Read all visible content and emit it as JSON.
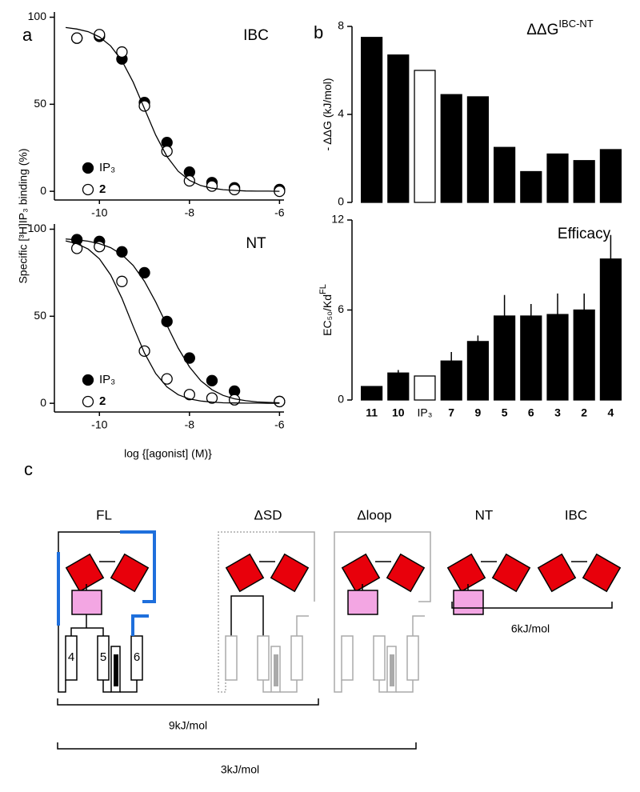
{
  "panel_labels": [
    "a",
    "b",
    "c"
  ],
  "chart_data": [
    {
      "type": "scatter",
      "title": "IBC",
      "ylabel": "Specific [³H]IP₃ binding (%)",
      "xlim": [
        -11,
        -5.9
      ],
      "ylim": [
        -5,
        103
      ],
      "xticks": [
        -10,
        -8,
        -6
      ],
      "yticks": [
        0,
        50,
        100
      ],
      "series": [
        {
          "name": "IP₃",
          "marker": "filled",
          "color": "#000000",
          "x": [
            -10.5,
            -10,
            -9.5,
            -9,
            -8.5,
            -8,
            -7.5,
            -7,
            -6
          ],
          "values": [
            88,
            89,
            76,
            51,
            28,
            11,
            5,
            2,
            1
          ]
        },
        {
          "name": "2",
          "bold": true,
          "marker": "open",
          "color": "#000000",
          "x": [
            -10.5,
            -10,
            -9.5,
            -9,
            -8.5,
            -8,
            -7.5,
            -7,
            -6
          ],
          "values": [
            88,
            90,
            80,
            49,
            23,
            6,
            3,
            1,
            0
          ]
        },
        {
          "marker": "line",
          "color": "#000000",
          "x": [
            -10.75,
            -10.5,
            -10.25,
            -10,
            -9.75,
            -9.5,
            -9.25,
            -9,
            -8.75,
            -8.5,
            -8.25,
            -8,
            -7.75,
            -7.5,
            -7.25,
            -7,
            -6.75,
            -6.5,
            -6.25,
            -6
          ],
          "values": [
            94.1,
            93.2,
            91.7,
            88.7,
            83.5,
            75.0,
            62.7,
            47.5,
            32.3,
            20.0,
            11.5,
            6.3,
            3.3,
            1.8,
            0.9,
            0.5,
            0.2,
            0.1,
            0.1,
            0
          ]
        }
      ]
    },
    {
      "type": "scatter",
      "title": "NT",
      "xlabel": "log {[agonist] (M)}",
      "xlim": [
        -11,
        -5.9
      ],
      "ylim": [
        -5,
        103
      ],
      "xticks": [
        -10,
        -8,
        -6
      ],
      "yticks": [
        0,
        50,
        100
      ],
      "series": [
        {
          "name": "IP₃",
          "marker": "filled",
          "color": "#000000",
          "x": [
            -10.5,
            -10,
            -9.5,
            -9,
            -8.5,
            -8,
            -7.5,
            -7,
            -6
          ],
          "values": [
            94,
            93,
            87,
            75,
            47,
            26,
            13,
            7,
            1
          ]
        },
        {
          "name": "2",
          "bold": true,
          "marker": "open",
          "color": "#000000",
          "x": [
            -10.5,
            -10,
            -9.5,
            -9,
            -8.5,
            -8,
            -7.5,
            -7,
            -6
          ],
          "values": [
            89,
            90,
            70,
            30,
            14,
            5,
            3,
            2,
            1
          ]
        },
        {
          "marker": "line",
          "color": "#000000",
          "x": [
            -10.75,
            -10.5,
            -10.25,
            -10,
            -9.75,
            -9.5,
            -9.25,
            -9,
            -8.75,
            -8.5,
            -8.25,
            -8,
            -7.75,
            -7.5,
            -7.25,
            -7,
            -6.75,
            -6.5,
            -6.25,
            -6
          ],
          "values": [
            94.4,
            93.9,
            93.1,
            91.7,
            89.4,
            85.4,
            79.2,
            70.1,
            58.2,
            44.8,
            31.7,
            20.9,
            13.0,
            7.8,
            4.5,
            2.6,
            1.5,
            0.8,
            0.5,
            0.3
          ]
        },
        {
          "marker": "line",
          "color": "#000000",
          "x": [
            -10.75,
            -10.5,
            -10.25,
            -10,
            -9.75,
            -9.5,
            -9.25,
            -9,
            -8.75,
            -8.5,
            -8.25,
            -8,
            -7.75,
            -7.5,
            -7.25,
            -7,
            -6.75,
            -6.5,
            -6.25,
            -6
          ],
          "values": [
            93.3,
            91.7,
            88.6,
            83.0,
            73.7,
            60.3,
            44.2,
            28.9,
            17.1,
            9.4,
            4.9,
            2.5,
            1.3,
            0.7,
            0.3,
            0.2,
            0.1,
            0.1,
            0,
            0
          ]
        }
      ]
    },
    {
      "type": "bar",
      "title": "ΔΔG",
      "title_superscript": "IBC-NT",
      "ylabel": "- ΔΔG (kJ/mol)",
      "categories": [
        null,
        null,
        null,
        null,
        null,
        null,
        null,
        null,
        null,
        null
      ],
      "values": [
        7.5,
        6.7,
        6.0,
        4.9,
        4.8,
        2.5,
        1.4,
        2.2,
        1.9,
        2.4
      ],
      "colors": [
        "#000000",
        "#000000",
        "#ffffff",
        "#000000",
        "#000000",
        "#000000",
        "#000000",
        "#000000",
        "#000000",
        "#000000"
      ],
      "ylim": [
        0,
        8
      ],
      "yticks": [
        0,
        4,
        8
      ]
    },
    {
      "type": "bar",
      "title": "Efficacy",
      "ylabel": "EC₅₀/Kd",
      "ylabel_superscript": "FL",
      "categories": [
        "11",
        "10",
        "IP₃",
        "7",
        "9",
        "5",
        "6",
        "3",
        "2",
        "4"
      ],
      "category_bold": [
        true,
        true,
        false,
        true,
        true,
        true,
        true,
        true,
        true,
        true
      ],
      "values": [
        0.9,
        1.8,
        1.6,
        2.6,
        3.9,
        5.6,
        5.6,
        5.7,
        6.0,
        9.4
      ],
      "errors": [
        0,
        0.2,
        0,
        0.6,
        0.4,
        1.4,
        0.8,
        1.4,
        1.1,
        1.6
      ],
      "colors": [
        "#000000",
        "#000000",
        "#ffffff",
        "#000000",
        "#000000",
        "#000000",
        "#000000",
        "#000000",
        "#000000",
        "#000000"
      ],
      "ylim": [
        0,
        12
      ],
      "yticks": [
        0,
        6,
        12
      ]
    }
  ],
  "diagram": {
    "labels": [
      "FL",
      "ΔSD",
      "Δloop",
      "NT",
      "IBC"
    ],
    "helix_labels": [
      "4",
      "5",
      "6"
    ],
    "brackets": [
      "6kJ/mol",
      "9kJ/mol",
      "3kJ/mol"
    ]
  }
}
